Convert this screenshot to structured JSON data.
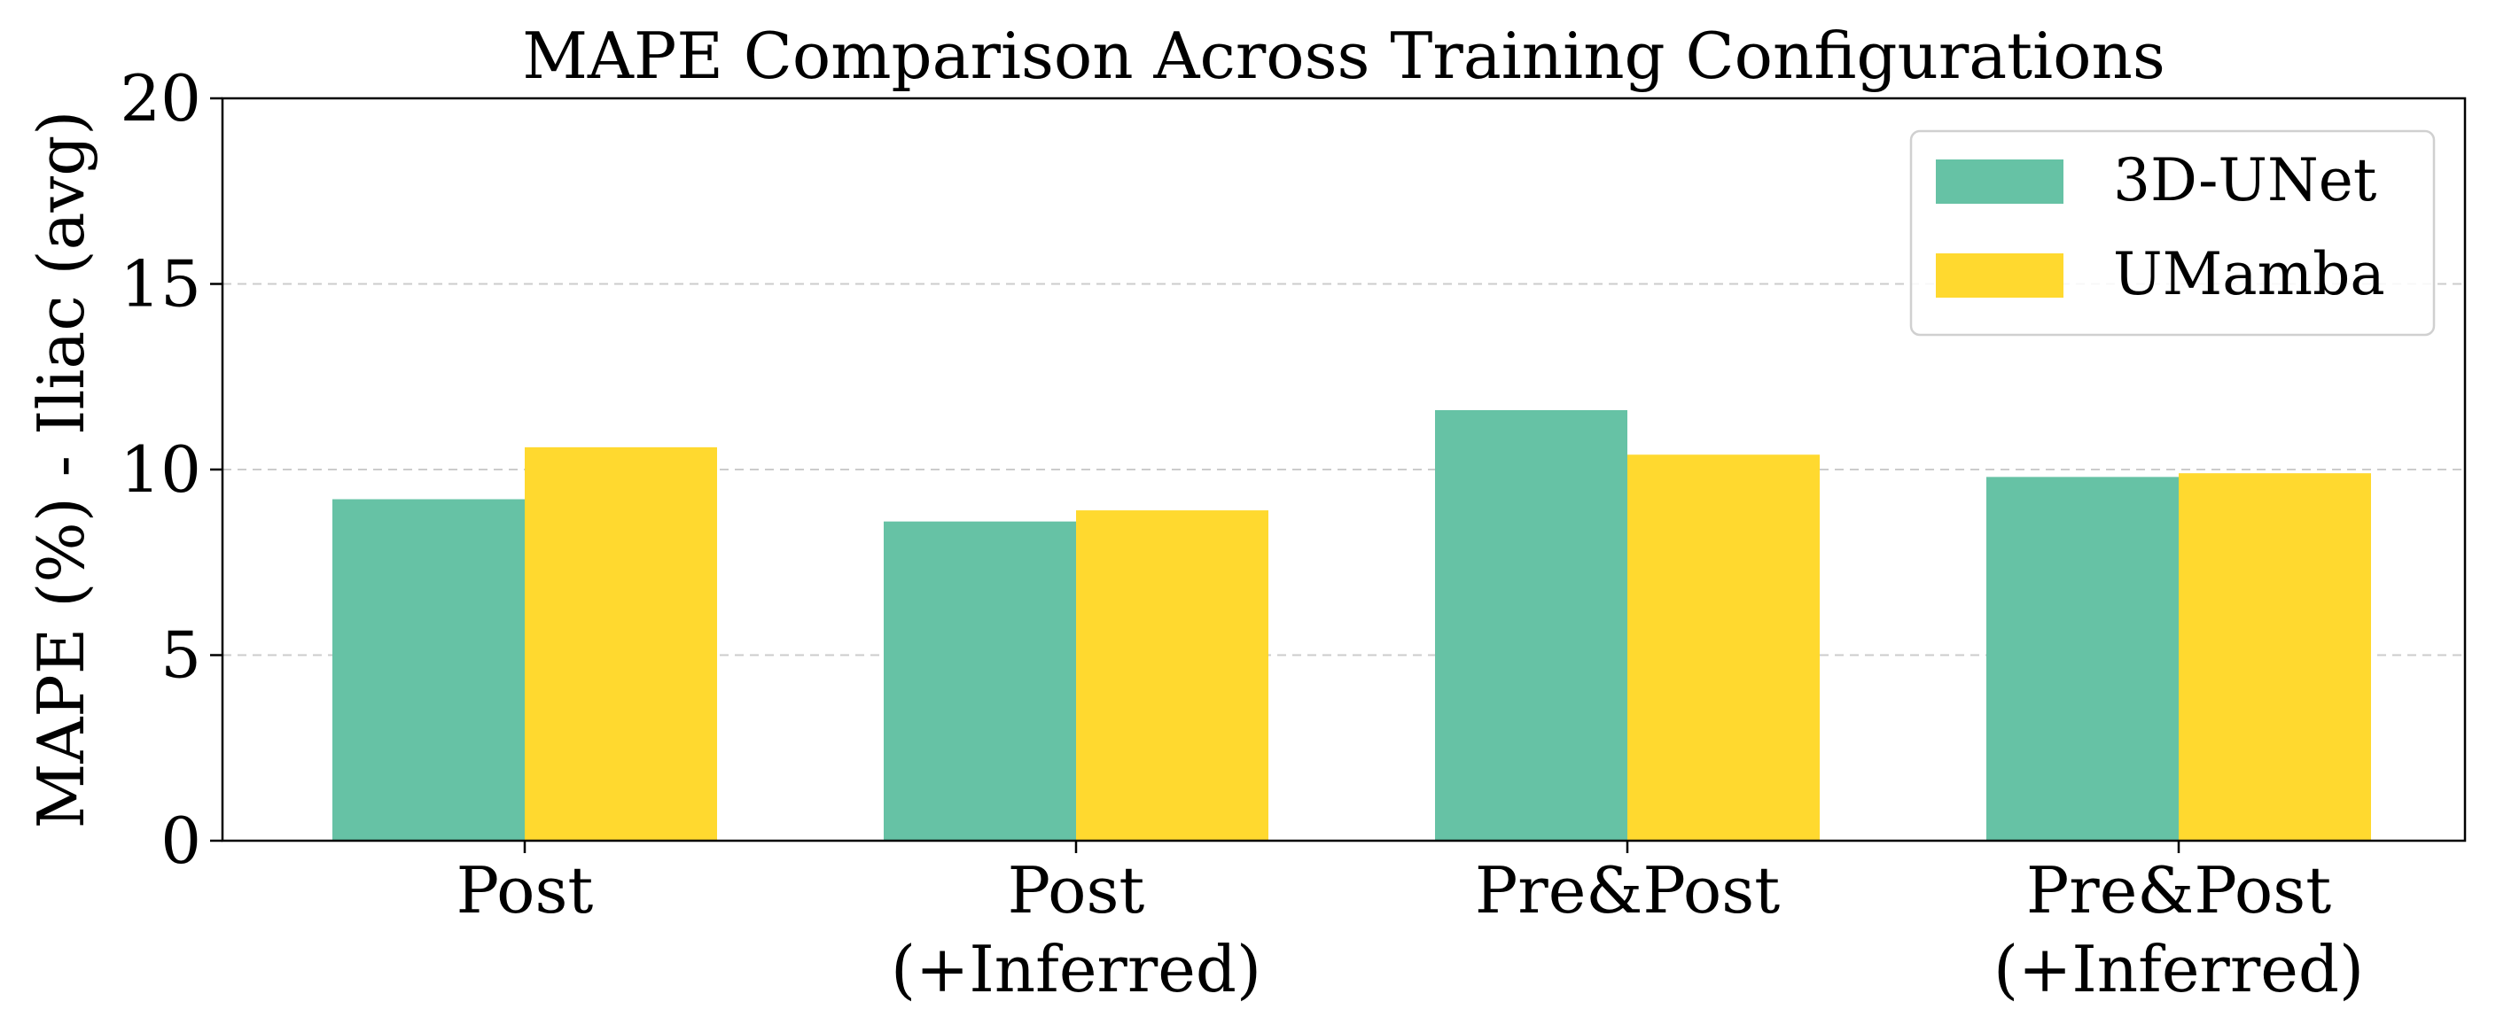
{
  "chart_data": {
    "type": "bar",
    "title": "MAPE Comparison Across Training Configurations",
    "xlabel": "",
    "ylabel": "MAPE (%) - Iliac (avg)",
    "categories": [
      [
        "Post"
      ],
      [
        "Post",
        "(+Inferred)"
      ],
      [
        "Pre&Post"
      ],
      [
        "Pre&Post",
        "(+Inferred)"
      ]
    ],
    "series": [
      {
        "name": "3D-UNet",
        "color": "#66c2a5",
        "values": [
          9.2,
          8.6,
          11.6,
          9.8
        ]
      },
      {
        "name": "UMamba",
        "color": "#ffd92f",
        "values": [
          10.6,
          8.9,
          10.4,
          9.9
        ]
      }
    ],
    "ylim": [
      0,
      20
    ],
    "yticks": [
      0,
      5,
      10,
      15,
      20
    ],
    "grid": "horizontal dashed",
    "legend_position": "top-right"
  }
}
